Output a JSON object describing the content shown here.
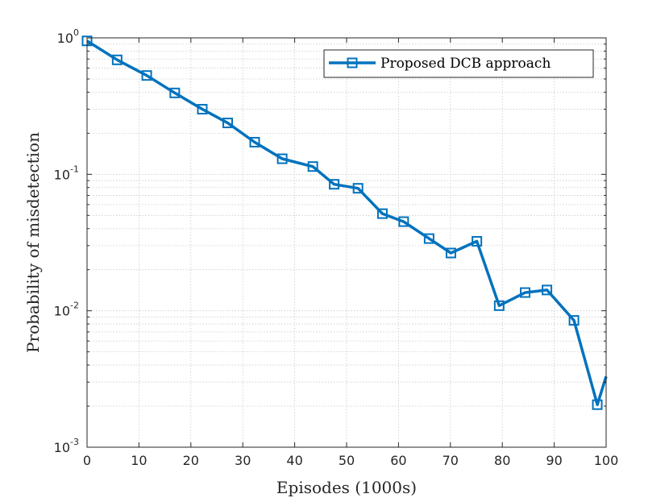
{
  "chart_data": {
    "type": "line",
    "title": "",
    "xlabel": "Episodes (1000s)",
    "ylabel": "Probability of misdetection",
    "xlim": [
      0,
      100
    ],
    "ylim": [
      0.001,
      1
    ],
    "yscale": "log",
    "grid": true,
    "x_ticks": [
      "0",
      "10",
      "20",
      "30",
      "40",
      "50",
      "60",
      "70",
      "80",
      "90",
      "100"
    ],
    "y_ticks": [
      {
        "value": 1,
        "base": "10",
        "exp": "0"
      },
      {
        "value": 0.1,
        "base": "10",
        "exp": "-1"
      },
      {
        "value": 0.01,
        "base": "10",
        "exp": "-2"
      },
      {
        "value": 0.001,
        "base": "10",
        "exp": "-3"
      }
    ],
    "legend_position": "top-right",
    "series": [
      {
        "name": "Proposed DCB approach",
        "color": "#0072BD",
        "marker": "square",
        "x": [
          0,
          5.8,
          11.5,
          16.9,
          22.2,
          27.1,
          32.3,
          37.6,
          43.5,
          47.6,
          52.2,
          56.9,
          61,
          65.9,
          70.1,
          75.1,
          79.4,
          84.4,
          88.6,
          93.8,
          98.3,
          100
        ],
        "y": [
          0.95,
          0.69,
          0.53,
          0.395,
          0.3,
          0.238,
          0.172,
          0.13,
          0.114,
          0.0845,
          0.079,
          0.0515,
          0.045,
          0.0338,
          0.0265,
          0.0323,
          0.0109,
          0.0136,
          0.0142,
          0.0085,
          0.00205,
          0.0033
        ]
      }
    ]
  }
}
